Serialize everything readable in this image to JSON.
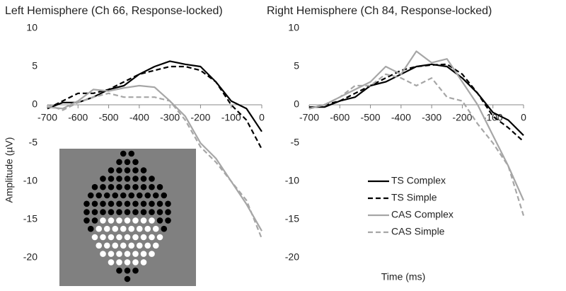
{
  "chart_data": [
    {
      "type": "line",
      "title": "Left Hemisphere (Ch 66, Response-locked)",
      "y_label": "Amplitude (µV)",
      "x": [
        -700,
        -650,
        -600,
        -550,
        -500,
        -450,
        -400,
        -350,
        -300,
        -250,
        -200,
        -150,
        -100,
        -50,
        0
      ],
      "xlim": [
        -700,
        0
      ],
      "xticks": [
        -700,
        -600,
        -500,
        -400,
        -300,
        -200,
        -100,
        0
      ],
      "ylim": [
        -20,
        10
      ],
      "yticks": [
        -20,
        -15,
        -10,
        -5,
        0,
        5,
        10
      ],
      "series": [
        {
          "name": "TS Complex",
          "color": "#000000",
          "dashed": false,
          "values": [
            -0.5,
            0.3,
            0.3,
            1,
            2,
            2.5,
            4,
            5,
            5.7,
            5.3,
            5,
            3,
            0.5,
            -0.5,
            -3.5
          ]
        },
        {
          "name": "TS Simple",
          "color": "#000000",
          "dashed": true,
          "values": [
            -0.5,
            0.5,
            1.5,
            1.5,
            2,
            3,
            4,
            4.5,
            5,
            5,
            4.5,
            3,
            0,
            -2,
            -5.8
          ]
        },
        {
          "name": "CAS Complex",
          "color": "#a6a6a6",
          "dashed": false,
          "values": [
            -0.3,
            -0.5,
            0.5,
            2,
            1.8,
            2.2,
            2.5,
            2.3,
            0.5,
            -1.5,
            -5,
            -7,
            -10,
            -13,
            -16.5
          ]
        },
        {
          "name": "CAS Simple",
          "color": "#a6a6a6",
          "dashed": true,
          "values": [
            0,
            -0.7,
            0.3,
            1,
            1.5,
            1,
            1,
            1,
            0.5,
            -2,
            -5.5,
            -7.5,
            -10,
            -12.5,
            -17.5
          ]
        }
      ]
    },
    {
      "type": "line",
      "title": "Right Hemisphere (Ch 84, Response-locked)",
      "x_label": "Time (ms)",
      "x": [
        -700,
        -650,
        -600,
        -550,
        -500,
        -450,
        -400,
        -350,
        -300,
        -250,
        -200,
        -150,
        -100,
        -50,
        0
      ],
      "xlim": [
        -700,
        0
      ],
      "xticks": [
        -700,
        -600,
        -500,
        -400,
        -300,
        -200,
        -100,
        0
      ],
      "ylim": [
        -20,
        10
      ],
      "yticks": [
        -20,
        -15,
        -10,
        -5,
        0,
        5,
        10
      ],
      "legend": true,
      "series": [
        {
          "name": "TS Complex",
          "color": "#000000",
          "dashed": false,
          "values": [
            -0.3,
            -0.3,
            0.5,
            1,
            2.5,
            3,
            4,
            5,
            5.3,
            5,
            3.5,
            1.5,
            -1,
            -2,
            -4
          ]
        },
        {
          "name": "TS Simple",
          "color": "#000000",
          "dashed": true,
          "values": [
            -0.5,
            0,
            0.5,
            1.5,
            2.5,
            3.5,
            4.5,
            5,
            5.2,
            5.3,
            4,
            1.5,
            -1.5,
            -3,
            -4.8
          ]
        },
        {
          "name": "CAS Complex",
          "color": "#a6a6a6",
          "dashed": false,
          "values": [
            -0.5,
            0,
            1,
            2,
            3,
            5,
            4,
            7,
            5.5,
            6,
            3,
            0,
            -4,
            -8,
            -12.5
          ]
        },
        {
          "name": "CAS Simple",
          "color": "#a6a6a6",
          "dashed": true,
          "values": [
            -0.5,
            0,
            1,
            2.5,
            2.5,
            4,
            3.5,
            2.5,
            3.5,
            1,
            0.5,
            -2.5,
            -5,
            -8,
            -14.5
          ]
        }
      ]
    }
  ]
}
